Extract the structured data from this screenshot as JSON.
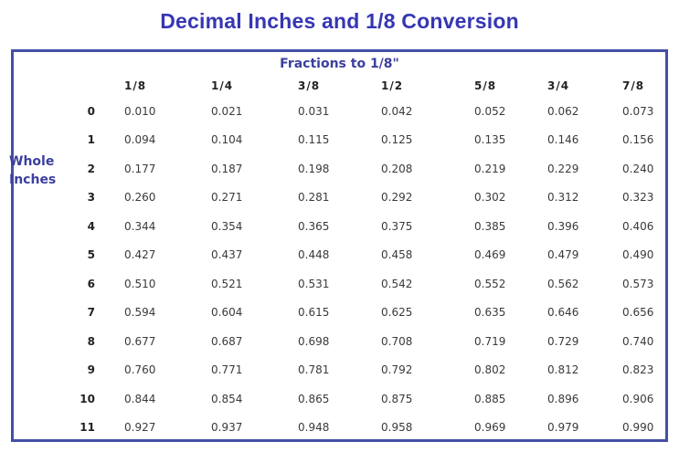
{
  "page": {
    "title": "Decimal Inches and 1/8 Conversion",
    "colors": {
      "title_blue": "#3636b4",
      "header_blue": "#3b3f9e",
      "border_blue": "#4450a5",
      "value_text": "#3a3a3a",
      "background": "#ffffff"
    }
  },
  "chart_data": {
    "type": "table",
    "title": "Decimal Inches and 1/8 Conversion",
    "subtitle": "Fractions to 1/8\"",
    "row_axis_label": "Whole Inches",
    "row_axis_label_lines": [
      "Whole",
      "Inches"
    ],
    "column_axis_label": "Fractions to 1/8\"",
    "col_header_values": [
      "1/8",
      "1/4",
      "3/8",
      "1/2",
      "5/8",
      "3/4",
      "7/8"
    ],
    "row_labels": [
      "0",
      "1",
      "2",
      "3",
      "4",
      "5",
      "6",
      "7",
      "8",
      "9",
      "10",
      "11"
    ],
    "rows": [
      [
        "0.010",
        "0.021",
        "0.031",
        "0.042",
        "0.052",
        "0.062",
        "0.073"
      ],
      [
        "0.094",
        "0.104",
        "0.115",
        "0.125",
        "0.135",
        "0.146",
        "0.156"
      ],
      [
        "0.177",
        "0.187",
        "0.198",
        "0.208",
        "0.219",
        "0.229",
        "0.240"
      ],
      [
        "0.260",
        "0.271",
        "0.281",
        "0.292",
        "0.302",
        "0.312",
        "0.323"
      ],
      [
        "0.344",
        "0.354",
        "0.365",
        "0.375",
        "0.385",
        "0.396",
        "0.406"
      ],
      [
        "0.427",
        "0.437",
        "0.448",
        "0.458",
        "0.469",
        "0.479",
        "0.490"
      ],
      [
        "0.510",
        "0.521",
        "0.531",
        "0.542",
        "0.552",
        "0.562",
        "0.573"
      ],
      [
        "0.594",
        "0.604",
        "0.615",
        "0.625",
        "0.635",
        "0.646",
        "0.656"
      ],
      [
        "0.677",
        "0.687",
        "0.698",
        "0.708",
        "0.719",
        "0.729",
        "0.740"
      ],
      [
        "0.760",
        "0.771",
        "0.781",
        "0.792",
        "0.802",
        "0.812",
        "0.823"
      ],
      [
        "0.844",
        "0.854",
        "0.865",
        "0.875",
        "0.885",
        "0.896",
        "0.906"
      ],
      [
        "0.927",
        "0.937",
        "0.948",
        "0.958",
        "0.969",
        "0.979",
        "0.990"
      ]
    ]
  }
}
